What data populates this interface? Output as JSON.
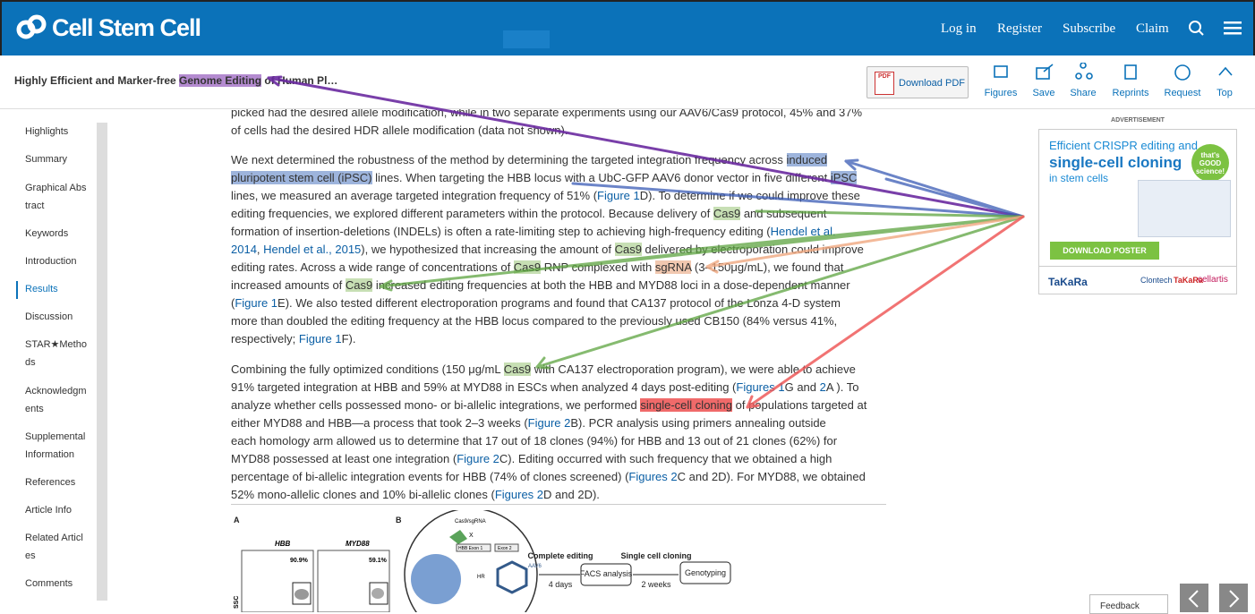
{
  "header": {
    "logo": "Cell Stem Cell",
    "nav": [
      "Log in",
      "Register",
      "Subscribe",
      "Claim"
    ]
  },
  "toolbar": {
    "title": [
      "Highly Efficient and Marker-free ",
      "Genome Editing",
      " of Human Pl…"
    ],
    "download": "Download PDF",
    "pdf_badge": "PDF",
    "actions": [
      "Figures",
      "Save",
      "Share",
      "Reprints",
      "Request",
      "Top"
    ]
  },
  "sidebar": [
    "Highlights",
    "Summary",
    "Graphical Abstract",
    "Keywords",
    "Introduction",
    "Results",
    "Discussion",
    "STAR★Methods",
    "Acknowledgments",
    "Supplemental Information",
    "References",
    "Article Info",
    "Related Articles",
    "Comments"
  ],
  "paragraphs": [
    {
      "lines": [
        [
          "picked had the desired allele modification, while in two separate experiments using our AAV6/Cas9 protocol, 45% and 37%"
        ],
        [
          "of cells had the desired HDR allele modification (data not shown)."
        ]
      ]
    },
    {
      "lines": [
        [
          "We next determined the robustness of the method by determining the targeted integration frequency across ",
          "induced"
        ],
        [
          "pluripotent stem cell (iPSC)",
          " lines. When targeting the HBB locus with a UbC-GFP AAV6 donor vector in five different ",
          "iPSC"
        ],
        [
          "lines, we measured an average targeted integration frequency of 51% (",
          "Figure 1",
          "D). To determine if we could improve these"
        ],
        [
          "editing frequencies, we explored different parameters within the protocol. Because delivery of ",
          "Cas9",
          " and subsequent"
        ],
        [
          "formation of insertion-deletions (INDELs) is often a rate-limiting step to achieving high-frequency editing (",
          "Hendel et al."
        ],
        [
          "2014",
          ", ",
          "Hendel et al., 2015",
          "), we hypothesized that increasing the amount of ",
          "Cas9",
          " delivered by electroporation could improve"
        ],
        [
          "editing rates. Across a wide range of concentrations of ",
          "Cas9",
          " RNP complexed with ",
          "sgRNA",
          " (3–150μg/mL), we found that"
        ],
        [
          "increased amounts of ",
          "Cas9",
          " increased editing frequencies at both the HBB and MYD88 loci in a dose-dependent manner"
        ],
        [
          "(",
          "Figure 1",
          "E). We also tested different electroporation programs and found that CA137 protocol of the Lonza 4-D system"
        ],
        [
          "more than doubled the editing frequency at the HBB locus compared to the previously used CB150 (84% versus 41%,"
        ],
        [
          "respectively; ",
          "Figure 1",
          "F)."
        ]
      ]
    },
    {
      "lines": [
        [
          "Combining the fully optimized conditions (150 μg/mL ",
          "Cas9",
          " with CA137 electroporation program), we were able to achieve"
        ],
        [
          "91% targeted integration at HBB and 59% at MYD88 in ESCs when analyzed 4 days post-editing (",
          "Figures 1",
          "G and ",
          "2",
          "A ). To"
        ],
        [
          "analyze whether cells possessed mono- or bi-allelic integrations, we performed ",
          "single-cell cloning",
          " of populations targeted at"
        ],
        [
          "either MYD88 and HBB—a process that took 2–3 weeks (",
          "Figure 2",
          "B). PCR analysis using primers annealing outside"
        ],
        [
          "each homology arm allowed us to determine that 17 out of 18 clones (94%) for HBB and 13 out of 21 clones (62%) for"
        ],
        [
          "MYD88 possessed at least one integration (",
          "Figure 2",
          "C). Editing occurred with such frequency that we obtained a high"
        ],
        [
          "percentage of bi-allelic integration events for HBB (74% of clones screened) (",
          "Figures 2",
          "C and 2D). For MYD88, we obtained"
        ],
        [
          "52% mono-allelic clones and 10% bi-allelic clones (",
          "Figures 2",
          "D and 2D)."
        ]
      ]
    }
  ],
  "ad": {
    "label": "ADVERTISEMENT",
    "line1": "Efficient CRISPR editing and",
    "line2": "single-cell cloning",
    "line3": "in stem cells",
    "badge": "that's GOOD science!",
    "button": "DOWNLOAD POSTER",
    "brand": "TaKaRa",
    "partners": [
      "Clontech",
      "TaKaRa",
      "cellartis"
    ]
  },
  "figure": {
    "panel_a": "A",
    "panel_b": "B",
    "plot1": "HBB",
    "plot2": "MYD88",
    "pct1": "90.9%",
    "pct2": "59.1%",
    "axis": "SSC",
    "reagent": "Cas9/sgRNA",
    "exon1": "HBB Exon 1",
    "exon2": "Exon 2",
    "cut": "X",
    "hr": "HR",
    "donor": "AAV6",
    "step1": "Complete editing",
    "time1": "4 days",
    "box1": "FACS analysis",
    "step2": "Single cell cloning",
    "time2": "2 weeks",
    "box2": "Genotyping"
  },
  "feedback": "Feedback"
}
